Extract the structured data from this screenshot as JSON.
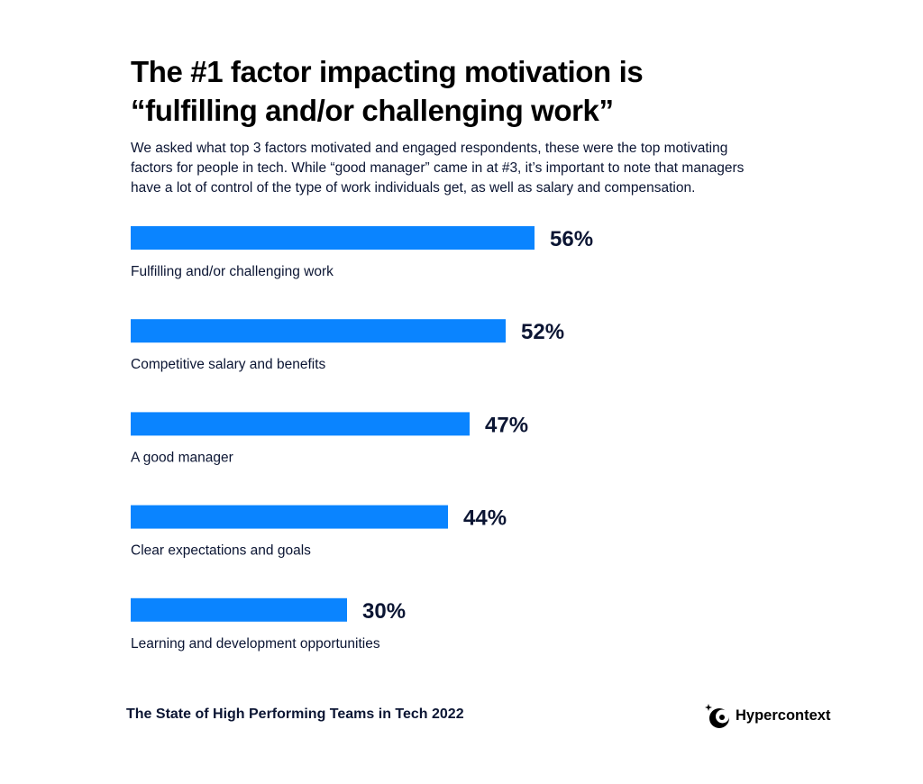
{
  "header": {
    "title_line1": "The #1 factor impacting motivation is",
    "title_line2": "“fulfilling and/or challenging work”",
    "subtitle_line1": "We asked what top 3 factors motivated and engaged respondents, these were the top motivating",
    "subtitle_line2": "factors for people in tech. While “good manager” came in at #3, it’s important to note that managers",
    "subtitle_line3": "have a lot of control of the type of work individuals get, as well as salary and compensation."
  },
  "chart_data": {
    "type": "bar",
    "orientation": "horizontal",
    "categories": [
      "Fulfilling and/or challenging work",
      "Competitive salary and benefits",
      "A good manager",
      "Clear expectations and goals",
      "Learning and development opportunities"
    ],
    "values": [
      56,
      52,
      47,
      44,
      30
    ],
    "value_labels": [
      "56%",
      "52%",
      "47%",
      "44%",
      "30%"
    ],
    "unit": "%",
    "xlim": [
      0,
      100
    ],
    "grid": false,
    "legend": "none",
    "bar_color": "#0a84ff",
    "label_color": "#0b1533"
  },
  "footer": {
    "source": "The State of High Performing Teams in Tech 2022",
    "brand": "Hypercontext"
  },
  "colors": {
    "accent": "#0a84ff",
    "text": "#0b1533",
    "title": "#000000",
    "background": "#ffffff"
  }
}
